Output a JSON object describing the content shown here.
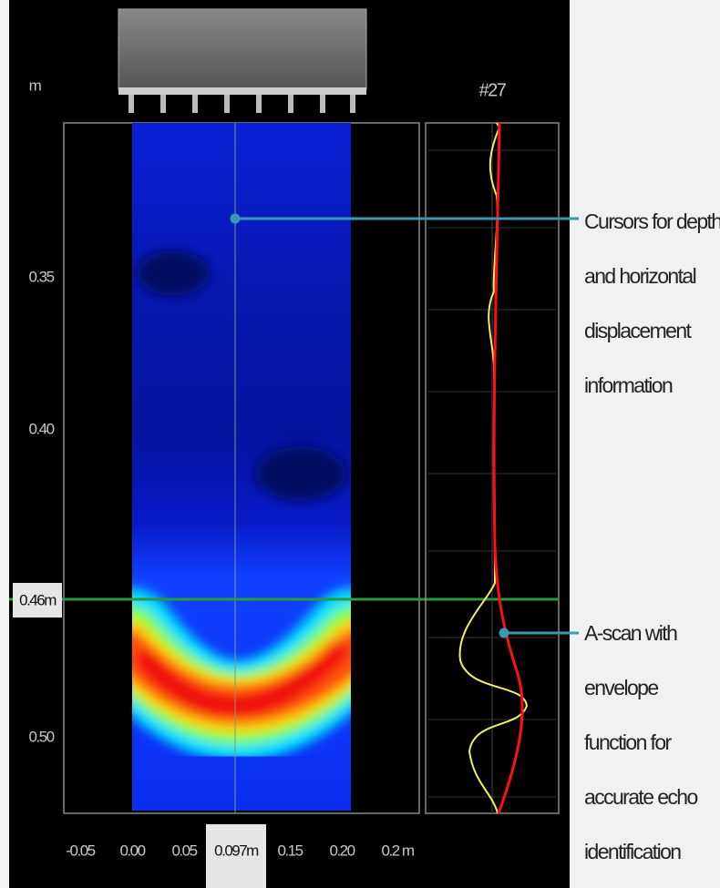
{
  "panel": {
    "depth_unit": "m",
    "scan_number": "#27",
    "depth_labels": [
      "0.35",
      "0.40",
      "0.50"
    ],
    "depth_cursor": "0.46m",
    "position_labels": [
      "-0.05",
      "0.00",
      "0.05",
      "0.097m",
      "0.15",
      "0.20",
      "0.2 m"
    ]
  },
  "annotations": [
    {
      "lines": [
        "Cursors for depth",
        "and horizontal",
        "displacement",
        "information"
      ]
    },
    {
      "lines": [
        "A-scan with",
        "envelope",
        "function for",
        "accurate echo",
        "identification"
      ]
    }
  ]
}
